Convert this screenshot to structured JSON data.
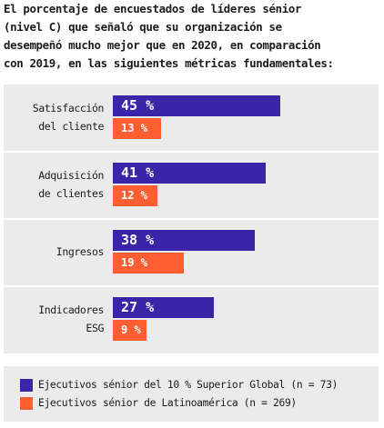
{
  "header": {
    "lines": [
      "El porcentaje de encuestados de líderes sénior",
      "(nivel C) que señaló que su organización se",
      "desempeñó mucho mejor que en 2020, en comparación",
      "con 2019, en las siguientes métricas fundamentales:"
    ]
  },
  "colors": {
    "global": "#3a24a8",
    "latam": "#ff5e33",
    "panel": "#ebebeb"
  },
  "chart_data": {
    "type": "bar",
    "orientation": "horizontal",
    "categories": [
      [
        "Satisfacción",
        "del cliente"
      ],
      [
        "Adquisición",
        "de clientes"
      ],
      [
        "Ingresos"
      ],
      [
        "Indicadores",
        "ESG"
      ]
    ],
    "series": [
      {
        "name": "Ejecutivos sénior del 10 % Superior Global (n = 73)",
        "values": [
          45,
          41,
          38,
          27
        ],
        "labels": [
          "45 %",
          "41 %",
          "38 %",
          "27 %"
        ]
      },
      {
        "name": "Ejecutivos sénior de Latinoamérica (n = 269)",
        "values": [
          13,
          12,
          19,
          9
        ],
        "labels": [
          "13 %",
          "12 %",
          "19 %",
          "9 %"
        ]
      }
    ],
    "xlim": [
      0,
      100
    ],
    "grid": false,
    "legend": "bottom"
  }
}
